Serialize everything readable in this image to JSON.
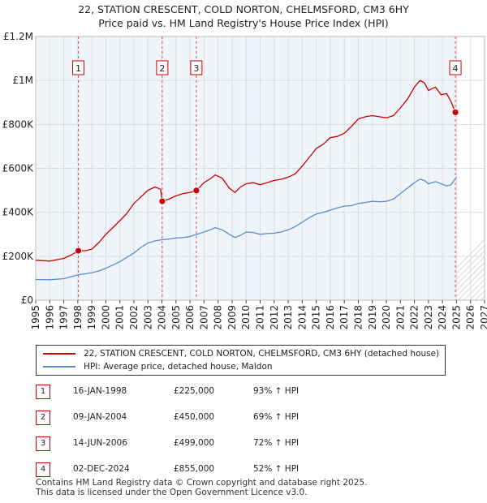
{
  "title_line1": "22, STATION CRESCENT, COLD NORTON, CHELMSFORD, CM3 6HY",
  "title_line2": "Price paid vs. HM Land Registry's House Price Index (HPI)",
  "legend": {
    "property": "22, STATION CRESCENT, COLD NORTON, CHELMSFORD, CM3 6HY (detached house)",
    "hpi": "HPI: Average price, detached house, Maldon"
  },
  "colors": {
    "property": "#cc0000",
    "hpi": "#5b8cc8",
    "grid": "#dddddd",
    "plot_bg": "#f0f4fb",
    "marker_line": "#e05050"
  },
  "transactions": [
    {
      "num": "1",
      "date": "16-JAN-1998",
      "price": "£225,000",
      "hpi_change": "93% ↑ HPI"
    },
    {
      "num": "2",
      "date": "09-JAN-2004",
      "price": "£450,000",
      "hpi_change": "69% ↑ HPI"
    },
    {
      "num": "3",
      "date": "14-JUN-2006",
      "price": "£499,000",
      "hpi_change": "72% ↑ HPI"
    },
    {
      "num": "4",
      "date": "02-DEC-2024",
      "price": "£855,000",
      "hpi_change": "52% ↑ HPI"
    }
  ],
  "footer_line1": "Contains HM Land Registry data © Crown copyright and database right 2025.",
  "footer_line2": "This data is licensed under the Open Government Licence v3.0.",
  "chart_data": {
    "type": "line",
    "title": "22, STATION CRESCENT, COLD NORTON, CHELMSFORD, CM3 6HY — Price paid vs. HM Land Registry's House Price Index (HPI)",
    "xlim": [
      1995,
      2027
    ],
    "ylim": [
      0,
      1200000
    ],
    "x_ticks": [
      1995,
      1996,
      1997,
      1998,
      1999,
      2000,
      2001,
      2002,
      2003,
      2004,
      2005,
      2006,
      2007,
      2008,
      2009,
      2010,
      2011,
      2012,
      2013,
      2014,
      2015,
      2016,
      2017,
      2018,
      2019,
      2020,
      2021,
      2022,
      2023,
      2024,
      2025,
      2026,
      2027
    ],
    "y_ticks": [
      {
        "value": 0,
        "label": "£0"
      },
      {
        "value": 200000,
        "label": "£200K"
      },
      {
        "value": 400000,
        "label": "£400K"
      },
      {
        "value": 600000,
        "label": "£600K"
      },
      {
        "value": 800000,
        "label": "£800K"
      },
      {
        "value": 1000000,
        "label": "£1M"
      },
      {
        "value": 1200000,
        "label": "£1.2M"
      }
    ],
    "forecast_start": 2025.0,
    "sales": [
      {
        "label": "1",
        "x": 1998.04,
        "y": 225000
      },
      {
        "label": "2",
        "x": 2004.02,
        "y": 450000
      },
      {
        "label": "3",
        "x": 2006.45,
        "y": 499000
      },
      {
        "label": "4",
        "x": 2024.92,
        "y": 855000
      }
    ],
    "series": [
      {
        "name": "22, STATION CRESCENT, COLD NORTON, CHELMSFORD, CM3 6HY (detached house)",
        "x": [
          1995.0,
          1996.0,
          1997.0,
          1997.5,
          1998.04,
          1998.5,
          1999.0,
          1999.5,
          2000.0,
          2000.5,
          2001.0,
          2001.5,
          2002.0,
          2002.5,
          2003.0,
          2003.5,
          2003.9,
          2004.02,
          2004.5,
          2005.0,
          2005.5,
          2006.0,
          2006.45,
          2007.0,
          2007.5,
          2007.8,
          2008.3,
          2008.8,
          2009.2,
          2009.6,
          2010.0,
          2010.5,
          2011.0,
          2011.5,
          2012.0,
          2012.5,
          2013.0,
          2013.5,
          2014.0,
          2014.5,
          2015.0,
          2015.5,
          2016.0,
          2016.5,
          2017.0,
          2017.5,
          2018.0,
          2018.5,
          2019.0,
          2019.5,
          2020.0,
          2020.5,
          2021.0,
          2021.5,
          2022.0,
          2022.4,
          2022.7,
          2023.0,
          2023.5,
          2023.9,
          2024.3,
          2024.6,
          2024.92
        ],
        "y": [
          182000,
          178000,
          190000,
          205000,
          225000,
          225000,
          232000,
          262000,
          300000,
          330000,
          362000,
          395000,
          440000,
          470000,
          500000,
          515000,
          505000,
          450000,
          460000,
          475000,
          485000,
          490000,
          499000,
          535000,
          555000,
          570000,
          555000,
          510000,
          490000,
          515000,
          530000,
          535000,
          525000,
          535000,
          545000,
          550000,
          560000,
          575000,
          610000,
          650000,
          690000,
          710000,
          740000,
          745000,
          760000,
          790000,
          825000,
          835000,
          840000,
          835000,
          830000,
          840000,
          875000,
          915000,
          970000,
          1000000,
          990000,
          955000,
          970000,
          935000,
          940000,
          905000,
          855000
        ]
      },
      {
        "name": "HPI: Average price, detached house, Maldon",
        "x": [
          1995.0,
          1996.0,
          1997.0,
          1998.0,
          1999.0,
          1999.5,
          2000.0,
          2000.5,
          2001.0,
          2001.5,
          2002.0,
          2002.5,
          2003.0,
          2003.5,
          2004.0,
          2004.5,
          2005.0,
          2005.5,
          2006.0,
          2006.5,
          2007.0,
          2007.5,
          2007.8,
          2008.3,
          2008.8,
          2009.2,
          2009.6,
          2010.0,
          2010.5,
          2011.0,
          2011.5,
          2012.0,
          2012.5,
          2013.0,
          2013.5,
          2014.0,
          2014.5,
          2015.0,
          2015.5,
          2016.0,
          2016.5,
          2017.0,
          2017.5,
          2018.0,
          2018.5,
          2019.0,
          2019.5,
          2020.0,
          2020.5,
          2021.0,
          2021.5,
          2022.0,
          2022.4,
          2022.7,
          2023.0,
          2023.5,
          2023.9,
          2024.3,
          2024.6,
          2025.0
        ],
        "y": [
          94000,
          93000,
          98000,
          115000,
          125000,
          133000,
          145000,
          160000,
          175000,
          195000,
          215000,
          240000,
          260000,
          270000,
          275000,
          278000,
          283000,
          285000,
          290000,
          300000,
          310000,
          322000,
          330000,
          320000,
          300000,
          285000,
          295000,
          310000,
          308000,
          300000,
          303000,
          305000,
          310000,
          320000,
          335000,
          355000,
          375000,
          392000,
          400000,
          410000,
          420000,
          428000,
          430000,
          440000,
          445000,
          450000,
          448000,
          450000,
          460000,
          485000,
          510000,
          535000,
          550000,
          545000,
          530000,
          540000,
          530000,
          520000,
          525000,
          560000
        ]
      }
    ]
  }
}
